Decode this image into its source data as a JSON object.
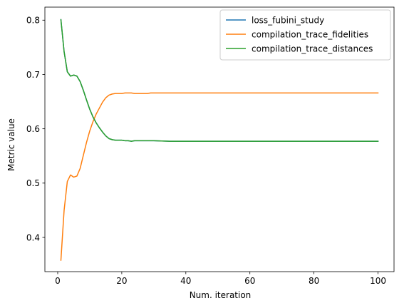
{
  "chart_data": {
    "type": "line",
    "title": "",
    "xlabel": "Num. iteration",
    "ylabel": "Metric value",
    "xlim": [
      -4.0,
      105.0
    ],
    "ylim": [
      0.337,
      0.824
    ],
    "xticks": [
      0,
      20,
      40,
      60,
      80,
      100
    ],
    "xtick_labels": [
      "0",
      "20",
      "40",
      "60",
      "80",
      "100"
    ],
    "yticks": [
      0.4,
      0.5,
      0.6,
      0.7,
      0.8
    ],
    "ytick_labels": [
      "0.4",
      "0.5",
      "0.6",
      "0.7",
      "0.8"
    ],
    "grid": false,
    "legend": "top-right",
    "series": [
      {
        "name": "loss_fubini_study",
        "color": "#1f77b4",
        "x": [
          1,
          2,
          3,
          4,
          5,
          6,
          7,
          8,
          9,
          10,
          11,
          12,
          13,
          14,
          15,
          16,
          17,
          18,
          19,
          20,
          21,
          22,
          23,
          24,
          25,
          26,
          27,
          28,
          29,
          30,
          35,
          40,
          50,
          60,
          70,
          80,
          90,
          100
        ],
        "y": [
          0.801,
          0.742,
          0.705,
          0.697,
          0.699,
          0.697,
          0.687,
          0.671,
          0.653,
          0.636,
          0.622,
          0.611,
          0.602,
          0.594,
          0.587,
          0.582,
          0.58,
          0.579,
          0.579,
          0.579,
          0.578,
          0.578,
          0.577,
          0.578,
          0.578,
          0.578,
          0.578,
          0.578,
          0.578,
          0.578,
          0.577,
          0.577,
          0.577,
          0.577,
          0.577,
          0.577,
          0.577,
          0.577
        ]
      },
      {
        "name": "compilation_trace_fidelities",
        "color": "#ff7f0e",
        "x": [
          1,
          2,
          3,
          4,
          5,
          6,
          7,
          8,
          9,
          10,
          11,
          12,
          13,
          14,
          15,
          16,
          17,
          18,
          19,
          20,
          21,
          22,
          23,
          24,
          25,
          26,
          27,
          28,
          29,
          30,
          35,
          40,
          50,
          60,
          70,
          80,
          90,
          100
        ],
        "y": [
          0.358,
          0.45,
          0.503,
          0.515,
          0.511,
          0.513,
          0.527,
          0.551,
          0.575,
          0.596,
          0.613,
          0.627,
          0.638,
          0.649,
          0.657,
          0.662,
          0.664,
          0.665,
          0.665,
          0.665,
          0.666,
          0.666,
          0.666,
          0.665,
          0.665,
          0.665,
          0.665,
          0.665,
          0.666,
          0.666,
          0.666,
          0.666,
          0.666,
          0.666,
          0.666,
          0.666,
          0.666,
          0.666
        ]
      },
      {
        "name": "compilation_trace_distances",
        "color": "#2ca02c",
        "x": [
          1,
          2,
          3,
          4,
          5,
          6,
          7,
          8,
          9,
          10,
          11,
          12,
          13,
          14,
          15,
          16,
          17,
          18,
          19,
          20,
          21,
          22,
          23,
          24,
          25,
          26,
          27,
          28,
          29,
          30,
          35,
          40,
          50,
          60,
          70,
          80,
          90,
          100
        ],
        "y": [
          0.801,
          0.742,
          0.705,
          0.697,
          0.699,
          0.697,
          0.687,
          0.671,
          0.653,
          0.636,
          0.622,
          0.611,
          0.602,
          0.594,
          0.587,
          0.582,
          0.58,
          0.579,
          0.579,
          0.579,
          0.578,
          0.578,
          0.577,
          0.578,
          0.578,
          0.578,
          0.578,
          0.578,
          0.578,
          0.578,
          0.577,
          0.577,
          0.577,
          0.577,
          0.577,
          0.577,
          0.577,
          0.577
        ]
      }
    ]
  }
}
